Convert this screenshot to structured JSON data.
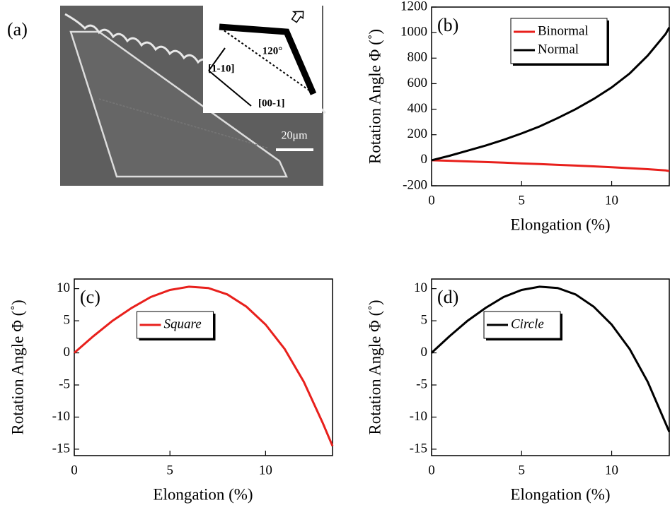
{
  "figure_a": {
    "panel_label": "(a)",
    "angle_label": "120°",
    "direction_1": "[1-10]",
    "direction_2": "[00-1]",
    "scale_bar": "20μm"
  },
  "chart_data": [
    {
      "type": "line",
      "panel_label": "(b)",
      "xlabel": "Elongation (%)",
      "ylabel": "Rotation Angle Φ (˚)",
      "x": [
        0,
        1,
        2,
        3,
        4,
        5,
        6,
        7,
        8,
        9,
        10,
        11,
        12,
        13,
        13.2
      ],
      "series": [
        {
          "name": "Binormal",
          "color": "#e8201c",
          "values": [
            0,
            -4,
            -9,
            -14,
            -19,
            -25,
            -30,
            -36,
            -42,
            -48,
            -55,
            -62,
            -70,
            -80,
            -85
          ]
        },
        {
          "name": "Normal",
          "color": "#000000",
          "values": [
            0,
            35,
            75,
            115,
            160,
            210,
            265,
            330,
            400,
            480,
            570,
            680,
            820,
            990,
            1040
          ]
        }
      ],
      "xlim": [
        0,
        13.2
      ],
      "ylim": [
        -200,
        1200
      ],
      "xticks": [
        0,
        5,
        10
      ],
      "yticks": [
        -200,
        0,
        200,
        400,
        600,
        800,
        1000,
        1200
      ],
      "legend": "upper center"
    },
    {
      "type": "line",
      "panel_label": "(c)",
      "xlabel": "Elongation (%)",
      "ylabel": "Rotation Angle Φ (˚)",
      "x": [
        0,
        1,
        2,
        3,
        4,
        5,
        6,
        7,
        8,
        9,
        10,
        11,
        12,
        13,
        13.5
      ],
      "series": [
        {
          "name": "Square",
          "color": "#e8201c",
          "values": [
            0,
            2.6,
            5.0,
            7.0,
            8.7,
            9.8,
            10.3,
            10.1,
            9.1,
            7.2,
            4.4,
            0.6,
            -4.5,
            -11,
            -14.5
          ]
        }
      ],
      "xlim": [
        0,
        13.5
      ],
      "ylim": [
        -16,
        11.5
      ],
      "xticks": [
        0,
        5,
        10
      ],
      "yticks": [
        -15,
        -10,
        -5,
        0,
        5,
        10
      ],
      "legend": "upper center"
    },
    {
      "type": "line",
      "panel_label": "(d)",
      "xlabel": "Elongation (%)",
      "ylabel": "Rotation Angle Φ (˚)",
      "x": [
        0,
        1,
        2,
        3,
        4,
        5,
        6,
        7,
        8,
        9,
        10,
        11,
        12,
        13,
        13.2
      ],
      "series": [
        {
          "name": "Circle",
          "color": "#000000",
          "values": [
            0,
            2.6,
            5.0,
            7.0,
            8.7,
            9.8,
            10.3,
            10.1,
            9.1,
            7.2,
            4.4,
            0.6,
            -4.5,
            -11,
            -12.3
          ]
        }
      ],
      "xlim": [
        0,
        13.2
      ],
      "ylim": [
        -16,
        11.5
      ],
      "xticks": [
        0,
        5,
        10
      ],
      "yticks": [
        -15,
        -10,
        -5,
        0,
        5,
        10
      ],
      "legend": "upper center"
    }
  ]
}
